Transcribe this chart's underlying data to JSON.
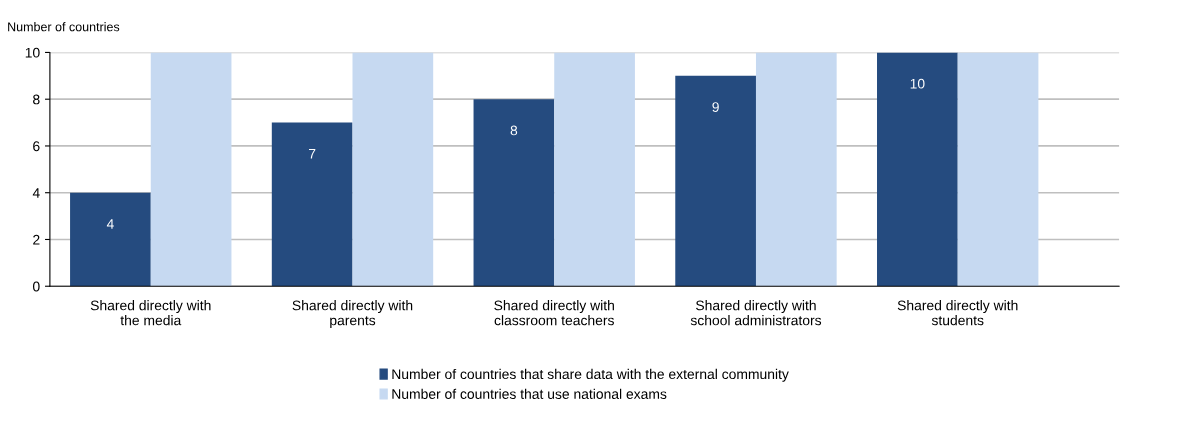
{
  "chart_data": {
    "type": "bar",
    "ylabel": "Number of countries",
    "categories": [
      "Shared directly with\nthe media",
      "Shared directly with\nparents",
      "Shared directly with\nclassroom teachers",
      "Shared directly with\nschool administrators",
      "Shared directly with\nstudents"
    ],
    "series": [
      {
        "name": "Number of countries that share data with the external community",
        "color": "#254b7f",
        "values": [
          4,
          7,
          8,
          9,
          10
        ],
        "value_labels": [
          "4",
          "7",
          "8",
          "9",
          "10"
        ]
      },
      {
        "name": "Number of countries that use national exams",
        "color": "#c6d9f1",
        "values": [
          10,
          10,
          10,
          10,
          10
        ]
      }
    ],
    "ylim": [
      0,
      10
    ],
    "yticks": [
      0,
      2,
      4,
      6,
      8,
      10
    ],
    "grid": "y",
    "legend": "bottom"
  }
}
